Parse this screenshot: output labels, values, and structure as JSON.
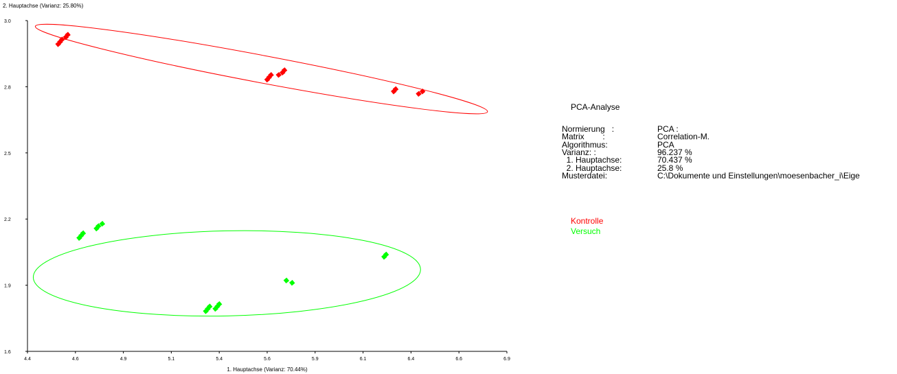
{
  "chart_data": {
    "type": "scatter",
    "xlabel": "1. Hauptachse (Varianz: 70.44%)",
    "ylabel": "2. Hauptachse (Varianz: 25.80%)",
    "xlim": [
      4.4,
      6.9
    ],
    "ylim": [
      1.6,
      3.0
    ],
    "xticks": [
      "4.4",
      "4.6",
      "4.9",
      "5.1",
      "5.4",
      "5.6",
      "5.9",
      "6.1",
      "6.4",
      "6.6",
      "6.9"
    ],
    "yticks": [
      "1.6",
      "1.9",
      "2.2",
      "2.5",
      "2.8",
      "3.0"
    ],
    "grid": false,
    "legend": "right",
    "series": [
      {
        "name": "Kontrolle",
        "color": "#ff0000",
        "points": [
          [
            4.56,
            2.9
          ],
          [
            4.57,
            2.91
          ],
          [
            4.58,
            2.92
          ],
          [
            4.6,
            2.93
          ],
          [
            4.61,
            2.94
          ],
          [
            5.65,
            2.75
          ],
          [
            5.66,
            2.76
          ],
          [
            5.67,
            2.77
          ],
          [
            5.71,
            2.77
          ],
          [
            5.73,
            2.78
          ],
          [
            5.74,
            2.79
          ],
          [
            6.31,
            2.7
          ],
          [
            6.32,
            2.71
          ],
          [
            6.44,
            2.69
          ],
          [
            6.46,
            2.7
          ]
        ],
        "ellipse": {
          "cx": 5.62,
          "cy": 2.795,
          "rx": 1.2,
          "ry": 0.058,
          "angle_deg": 10.7
        }
      },
      {
        "name": "Versuch",
        "color": "#00ff00",
        "points": [
          [
            4.67,
            2.08
          ],
          [
            4.68,
            2.09
          ],
          [
            4.69,
            2.1
          ],
          [
            4.76,
            2.12
          ],
          [
            4.77,
            2.13
          ],
          [
            4.79,
            2.14
          ],
          [
            5.33,
            1.77
          ],
          [
            5.34,
            1.78
          ],
          [
            5.35,
            1.79
          ],
          [
            5.38,
            1.78
          ],
          [
            5.39,
            1.79
          ],
          [
            5.4,
            1.8
          ],
          [
            5.75,
            1.9
          ],
          [
            5.78,
            1.89
          ],
          [
            6.26,
            2.0
          ],
          [
            6.27,
            2.01
          ]
        ],
        "ellipse": {
          "cx": 5.44,
          "cy": 1.93,
          "rx": 1.01,
          "ry": 0.18,
          "angle_deg": -1.2
        }
      }
    ]
  },
  "panel": {
    "title": "PCA-Analyse",
    "rows": [
      {
        "label": "Normierung   :",
        "value": "PCA   :"
      },
      {
        "label": "Matrix        :",
        "value": "Correlation-M."
      },
      {
        "label": "Algorithmus:",
        "value": "PCA"
      },
      {
        "label": "Varianz: :",
        "value": "96.237 %"
      },
      {
        "label": "  1. Hauptachse:",
        "value": "70.437 %"
      },
      {
        "label": "  2. Hauptachse:",
        "value": "25.8 %"
      },
      {
        "label": "Musterdatei:",
        "value": "C:\\Dokumente und Einstellungen\\moesenbacher_i\\Eige"
      }
    ],
    "legend": [
      {
        "label": "Kontrolle",
        "color": "#ff0000"
      },
      {
        "label": "Versuch",
        "color": "#00ff00"
      }
    ]
  }
}
